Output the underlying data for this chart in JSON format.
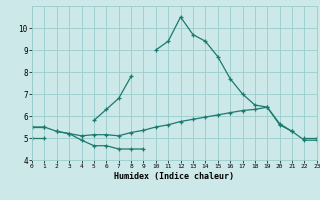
{
  "xlabel": "Humidex (Indice chaleur)",
  "x": [
    0,
    1,
    2,
    3,
    4,
    5,
    6,
    7,
    8,
    9,
    10,
    11,
    12,
    13,
    14,
    15,
    16,
    17,
    18,
    19,
    20,
    21,
    22,
    23
  ],
  "line1": [
    null,
    null,
    5.3,
    5.2,
    4.9,
    4.65,
    4.65,
    4.5,
    4.5,
    4.5,
    null,
    null,
    null,
    null,
    null,
    null,
    null,
    null,
    null,
    null,
    null,
    null,
    null,
    null
  ],
  "line2": [
    5.5,
    5.5,
    5.3,
    5.2,
    5.1,
    5.15,
    5.15,
    5.1,
    5.25,
    5.35,
    5.5,
    5.6,
    5.75,
    5.85,
    5.95,
    6.05,
    6.15,
    6.25,
    6.3,
    6.4,
    5.65,
    5.3,
    4.9,
    4.9
  ],
  "line3": [
    5.5,
    5.5,
    null,
    null,
    null,
    5.8,
    6.3,
    6.8,
    7.8,
    null,
    9.0,
    9.4,
    10.5,
    9.7,
    9.4,
    8.7,
    7.7,
    7.0,
    6.5,
    6.4,
    5.6,
    5.3,
    null,
    null
  ],
  "line4": [
    5.0,
    5.0,
    null,
    null,
    null,
    null,
    null,
    null,
    null,
    null,
    null,
    null,
    null,
    null,
    null,
    null,
    null,
    null,
    null,
    null,
    null,
    null,
    5.0,
    5.0
  ],
  "bg_color": "#cce8e8",
  "grid_color": "#99cccc",
  "line_color": "#1a7a6e",
  "ylim": [
    4.0,
    11.0
  ],
  "xlim": [
    0,
    23
  ],
  "yticks": [
    4,
    5,
    6,
    7,
    8,
    9,
    10
  ],
  "xticks": [
    0,
    1,
    2,
    3,
    4,
    5,
    6,
    7,
    8,
    9,
    10,
    11,
    12,
    13,
    14,
    15,
    16,
    17,
    18,
    19,
    20,
    21,
    22,
    23
  ]
}
